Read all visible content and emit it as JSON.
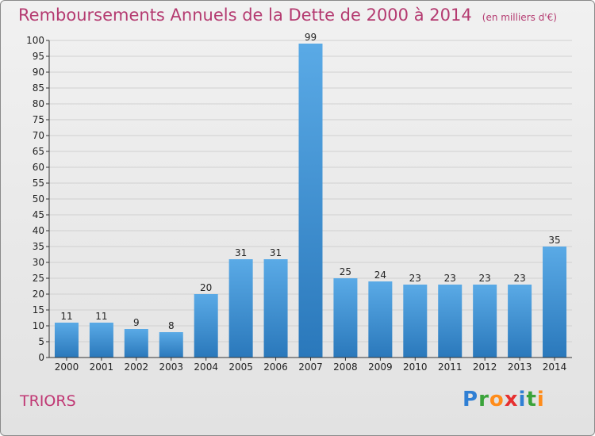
{
  "header": {
    "title": "Remboursements Annuels de la Dette de 2000 à 2014",
    "unit": "(en milliers d'€)"
  },
  "footer": {
    "commune": "TRIORS"
  },
  "logo": {
    "text": "Proxiti",
    "letters": [
      "P",
      "r",
      "o",
      "x",
      "i",
      "t",
      "i"
    ],
    "colors": [
      "#2f7fd4",
      "#3aa33a",
      "#ff8c1a",
      "#e63030",
      "#2f7fd4",
      "#3aa33a",
      "#ff8c1a"
    ]
  },
  "colors": {
    "bar_light": "#5aaae6",
    "bar_dark": "#2a78bb",
    "grid": "#d0d0d0",
    "axis": "#333333",
    "text": "#222222",
    "title": "#b43a70"
  },
  "chart_data": {
    "type": "bar",
    "title": "Remboursements Annuels de la Dette de 2000 à 2014",
    "subtitle": "(en milliers d'€)",
    "categories": [
      "2000",
      "2001",
      "2002",
      "2003",
      "2004",
      "2005",
      "2006",
      "2007",
      "2008",
      "2009",
      "2010",
      "2011",
      "2012",
      "2013",
      "2014"
    ],
    "values": [
      11,
      11,
      9,
      8,
      20,
      31,
      31,
      99,
      25,
      24,
      23,
      23,
      23,
      23,
      35
    ],
    "yticks": [
      0,
      5,
      10,
      15,
      20,
      25,
      30,
      35,
      40,
      45,
      50,
      55,
      60,
      65,
      70,
      75,
      80,
      85,
      90,
      95,
      100
    ],
    "ylim": [
      0,
      100
    ],
    "grid": true,
    "data_labels": true,
    "xlabel": "",
    "ylabel": ""
  }
}
